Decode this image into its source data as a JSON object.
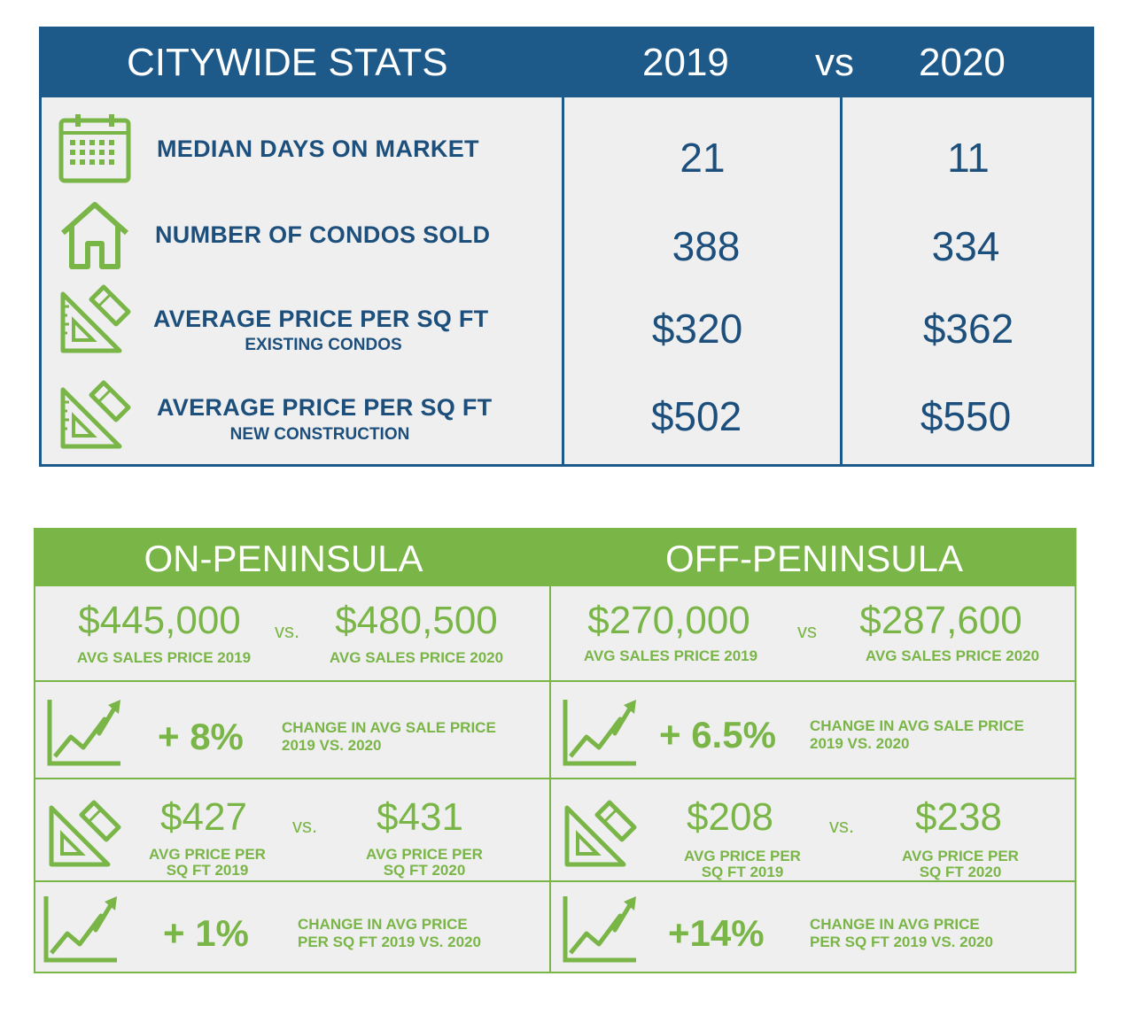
{
  "citywide": {
    "title": "CITYWIDE STATS",
    "year_a": "2019",
    "vs": "vs",
    "year_b": "2020",
    "rows": [
      {
        "icon": "calendar-icon",
        "label": "MEDIAN DAYS ON MARKET",
        "sub": "",
        "v2019": "21",
        "v2020": "11"
      },
      {
        "icon": "house-icon",
        "label": "NUMBER OF CONDOS SOLD",
        "sub": "",
        "v2019": "388",
        "v2020": "334"
      },
      {
        "icon": "ruler-pencil-icon",
        "label": "AVERAGE PRICE PER SQ FT",
        "sub": "EXISTING CONDOS",
        "v2019": "$320",
        "v2020": "$362"
      },
      {
        "icon": "ruler-pencil-icon",
        "label": "AVERAGE PRICE PER SQ FT",
        "sub": "NEW CONSTRUCTION",
        "v2019": "$502",
        "v2020": "$550"
      }
    ]
  },
  "peninsula": {
    "on": {
      "title": "ON-PENINSULA",
      "sales_2019": "$445,000",
      "sales_vs": "vs.",
      "sales_2020": "$480,500",
      "sales_2019_label": "AVG SALES PRICE 2019",
      "sales_2020_label": "AVG SALES PRICE 2020",
      "sales_change": "+ 8%",
      "sales_change_line1": "CHANGE IN AVG SALE PRICE",
      "sales_change_line2": "2019 VS. 2020",
      "sqft_2019": "$427",
      "sqft_vs": "vs.",
      "sqft_2020": "$431",
      "sqft_2019_label1": "AVG PRICE PER",
      "sqft_2019_label2": "SQ FT 2019",
      "sqft_2020_label1": "AVG PRICE PER",
      "sqft_2020_label2": "SQ FT 2020",
      "sqft_change": "+ 1%",
      "sqft_change_line1": "CHANGE  IN  AVG  PRICE",
      "sqft_change_line2": "PER SQ FT 2019 VS. 2020"
    },
    "off": {
      "title": "OFF-PENINSULA",
      "sales_2019": "$270,000",
      "sales_vs": "vs",
      "sales_2020": "$287,600",
      "sales_2019_label": "AVG SALES PRICE 2019",
      "sales_2020_label": "AVG SALES PRICE 2020",
      "sales_change": "+ 6.5%",
      "sales_change_line1": "CHANGE IN AVG SALE PRICE",
      "sales_change_line2": "2019 VS. 2020",
      "sqft_2019": "$208",
      "sqft_vs": "vs.",
      "sqft_2020": "$238",
      "sqft_2019_label1": "AVG PRICE PER",
      "sqft_2019_label2": "SQ FT 2019",
      "sqft_2020_label1": "AVG PRICE PER",
      "sqft_2020_label2": "SQ FT 2020",
      "sqft_change": "+14%",
      "sqft_change_line1": "CHANGE  IN  AVG  PRICE",
      "sqft_change_line2": "PER SQ FT 2019 VS. 2020"
    }
  },
  "colors": {
    "blue": "#1d5a8a",
    "green": "#7ab547",
    "panel": "#efefef"
  }
}
